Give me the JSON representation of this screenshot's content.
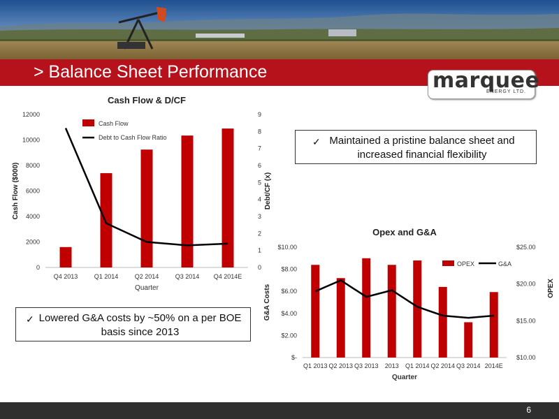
{
  "slide": {
    "title": "> Balance Sheet Performance",
    "page_number": "6",
    "logo_word": "marquee",
    "logo_sub": "ENERGY LTD."
  },
  "callouts": {
    "top_right": "Maintained a pristine balance sheet and increased financial flexibility",
    "bottom_left": "Lowered G&A costs by ~50% on a per BOE basis since 2013",
    "check_glyph": "✓"
  },
  "colors": {
    "accent_red": "#c00000",
    "line": "#000000"
  },
  "chart_data": [
    {
      "type": "bar",
      "title": "Cash Flow & D/CF",
      "categories": [
        "Q4 2013",
        "Q1 2014",
        "Q2 2014",
        "Q3 2014",
        "Q4 2014E"
      ],
      "xlabel": "Quarter",
      "ylabel": "Cash Flow ($000)",
      "ylabel_right": "Debt/CF (x)",
      "ylim": [
        0,
        12000
      ],
      "ylim_right": [
        0,
        9
      ],
      "yticks": [
        "0",
        "2000",
        "4000",
        "6000",
        "8000",
        "10000",
        "12000"
      ],
      "yticks_right": [
        "0",
        "1",
        "2",
        "3",
        "4",
        "5",
        "6",
        "7",
        "8",
        "9"
      ],
      "legend_position": "top-left",
      "series": [
        {
          "name": "Cash Flow",
          "type": "bar",
          "axis": "left",
          "values": [
            1600,
            7400,
            9250,
            10350,
            10900
          ]
        },
        {
          "name": "Debt to Cash Flow Ratio",
          "type": "line",
          "axis": "right",
          "values": [
            8.2,
            2.6,
            1.5,
            1.3,
            1.4
          ]
        }
      ]
    },
    {
      "type": "bar",
      "title": "Opex and G&A",
      "categories": [
        "Q1 2013",
        "Q2 2013",
        "Q3 2013",
        "2013",
        "Q1 2014",
        "Q2 2014",
        "Q3 2014",
        "2014E"
      ],
      "xlabel": "Quarter",
      "ylabel": "G&A Costs",
      "ylabel_right": "OPEX",
      "ylim": [
        0,
        10
      ],
      "ylim_right": [
        10,
        25
      ],
      "yticks": [
        "$-",
        "$2.00",
        "$4.00",
        "$6.00",
        "$8.00",
        "$10.00"
      ],
      "yticks_right": [
        "$10.00",
        "$15.00",
        "$20.00",
        "$25.00"
      ],
      "legend_position": "top-right",
      "series": [
        {
          "name": "OPEX",
          "type": "bar",
          "axis": "right",
          "values": [
            22.6,
            20.8,
            23.5,
            22.6,
            23.2,
            19.6,
            14.8,
            18.9
          ]
        },
        {
          "name": "G&A",
          "type": "line",
          "axis": "left",
          "values": [
            6.0,
            7.0,
            5.5,
            6.1,
            4.6,
            3.8,
            3.6,
            3.8
          ]
        }
      ]
    }
  ]
}
